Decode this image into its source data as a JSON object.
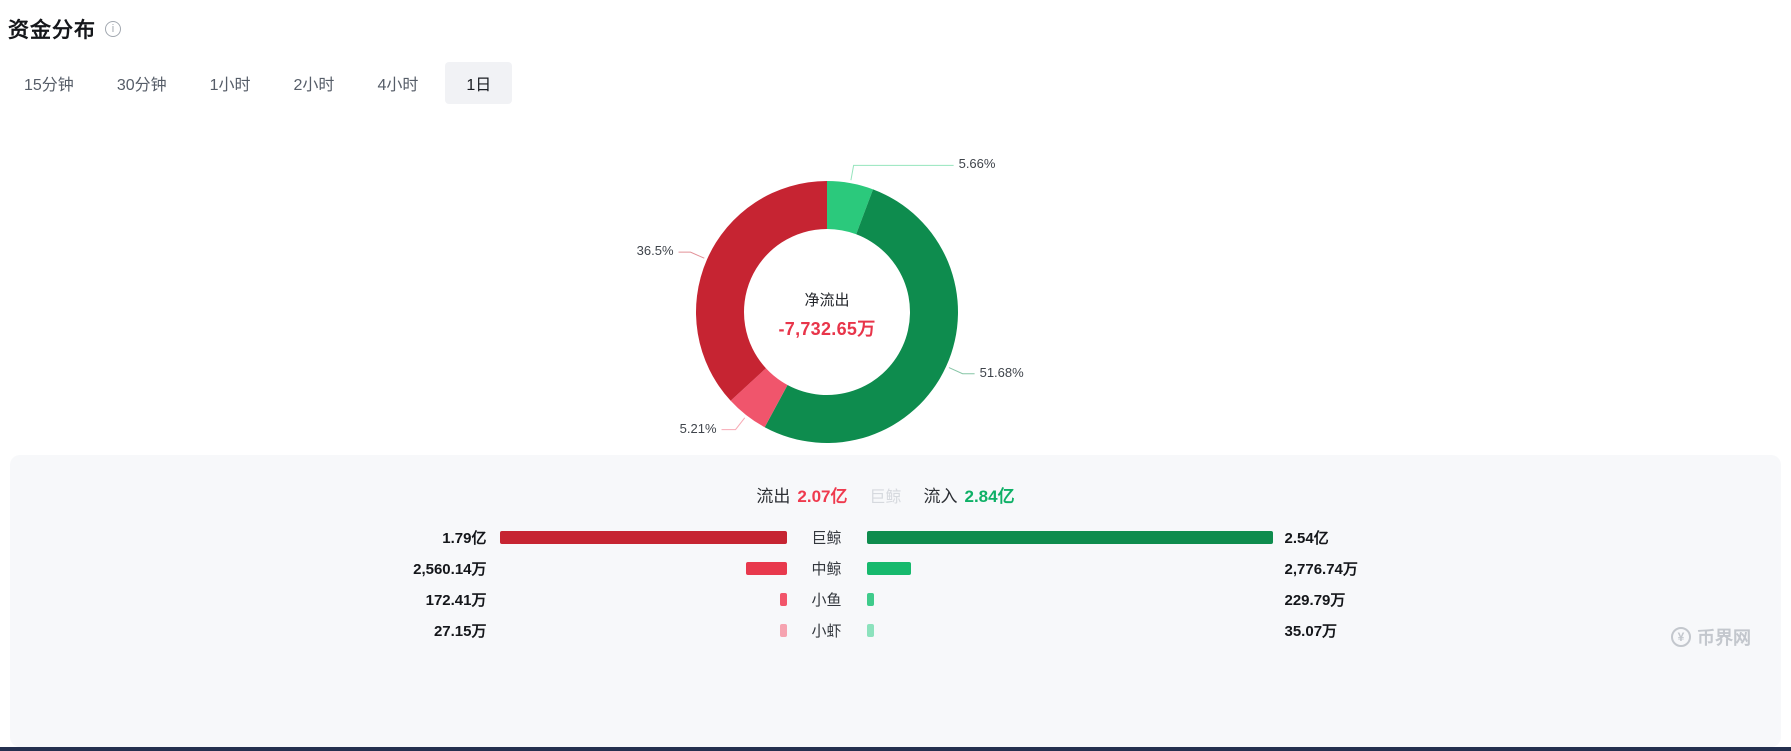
{
  "header": {
    "title": "资金分布",
    "info_icon": "i"
  },
  "tabs": {
    "items": [
      {
        "label": "15分钟"
      },
      {
        "label": "30分钟"
      },
      {
        "label": "1小时"
      },
      {
        "label": "2小时"
      },
      {
        "label": "4小时"
      },
      {
        "label": "1日",
        "active": true
      }
    ]
  },
  "chart_data": {
    "type": "pie",
    "title": "资金分布",
    "donut": {
      "center_label": "净流出",
      "center_value": "-7,732.65万",
      "center_value_color": "#e8354a",
      "segments": [
        {
          "name": "中鲸流入",
          "pct": 5.66,
          "label": "5.66%",
          "color": "#2bc97c"
        },
        {
          "name": "巨鲸流入",
          "pct": 51.68,
          "label": "51.68%",
          "color": "#0e8c4e"
        },
        {
          "name": "中鲸流出",
          "pct": 5.21,
          "label": "5.21%",
          "color": "#f0556c"
        },
        {
          "name": "巨鲸流出",
          "pct": 36.5,
          "label": "36.5%",
          "color": "#c62432"
        }
      ]
    },
    "bars": {
      "outflow_label": "流出",
      "outflow_total": "2.07亿",
      "outflow_color": "#ef3a4e",
      "inflow_label": "流入",
      "inflow_total": "2.84亿",
      "inflow_color": "#0eb066",
      "faint_center_label": "巨鲸",
      "rows": [
        {
          "category": "巨鲸",
          "out_label": "1.79亿",
          "out_wan": 17900,
          "out_color": "#c62432",
          "in_label": "2.54亿",
          "in_wan": 25400,
          "in_color": "#0e8c4e"
        },
        {
          "category": "中鲸",
          "out_label": "2,560.14万",
          "out_wan": 2560.14,
          "out_color": "#e8394d",
          "in_label": "2,776.74万",
          "in_wan": 2776.74,
          "in_color": "#17b96d"
        },
        {
          "category": "小鱼",
          "out_label": "172.41万",
          "out_wan": 172.41,
          "out_color": "#f2556a",
          "in_label": "229.79万",
          "in_wan": 229.79,
          "in_color": "#3fcb8b"
        },
        {
          "category": "小虾",
          "out_label": "27.15万",
          "out_wan": 27.15,
          "out_color": "#f6a3b0",
          "in_label": "35.07万",
          "in_wan": 35.07,
          "in_color": "#8ce2bd"
        }
      ]
    }
  },
  "watermark": {
    "text": "币界网",
    "icon_glyph": "¥"
  }
}
